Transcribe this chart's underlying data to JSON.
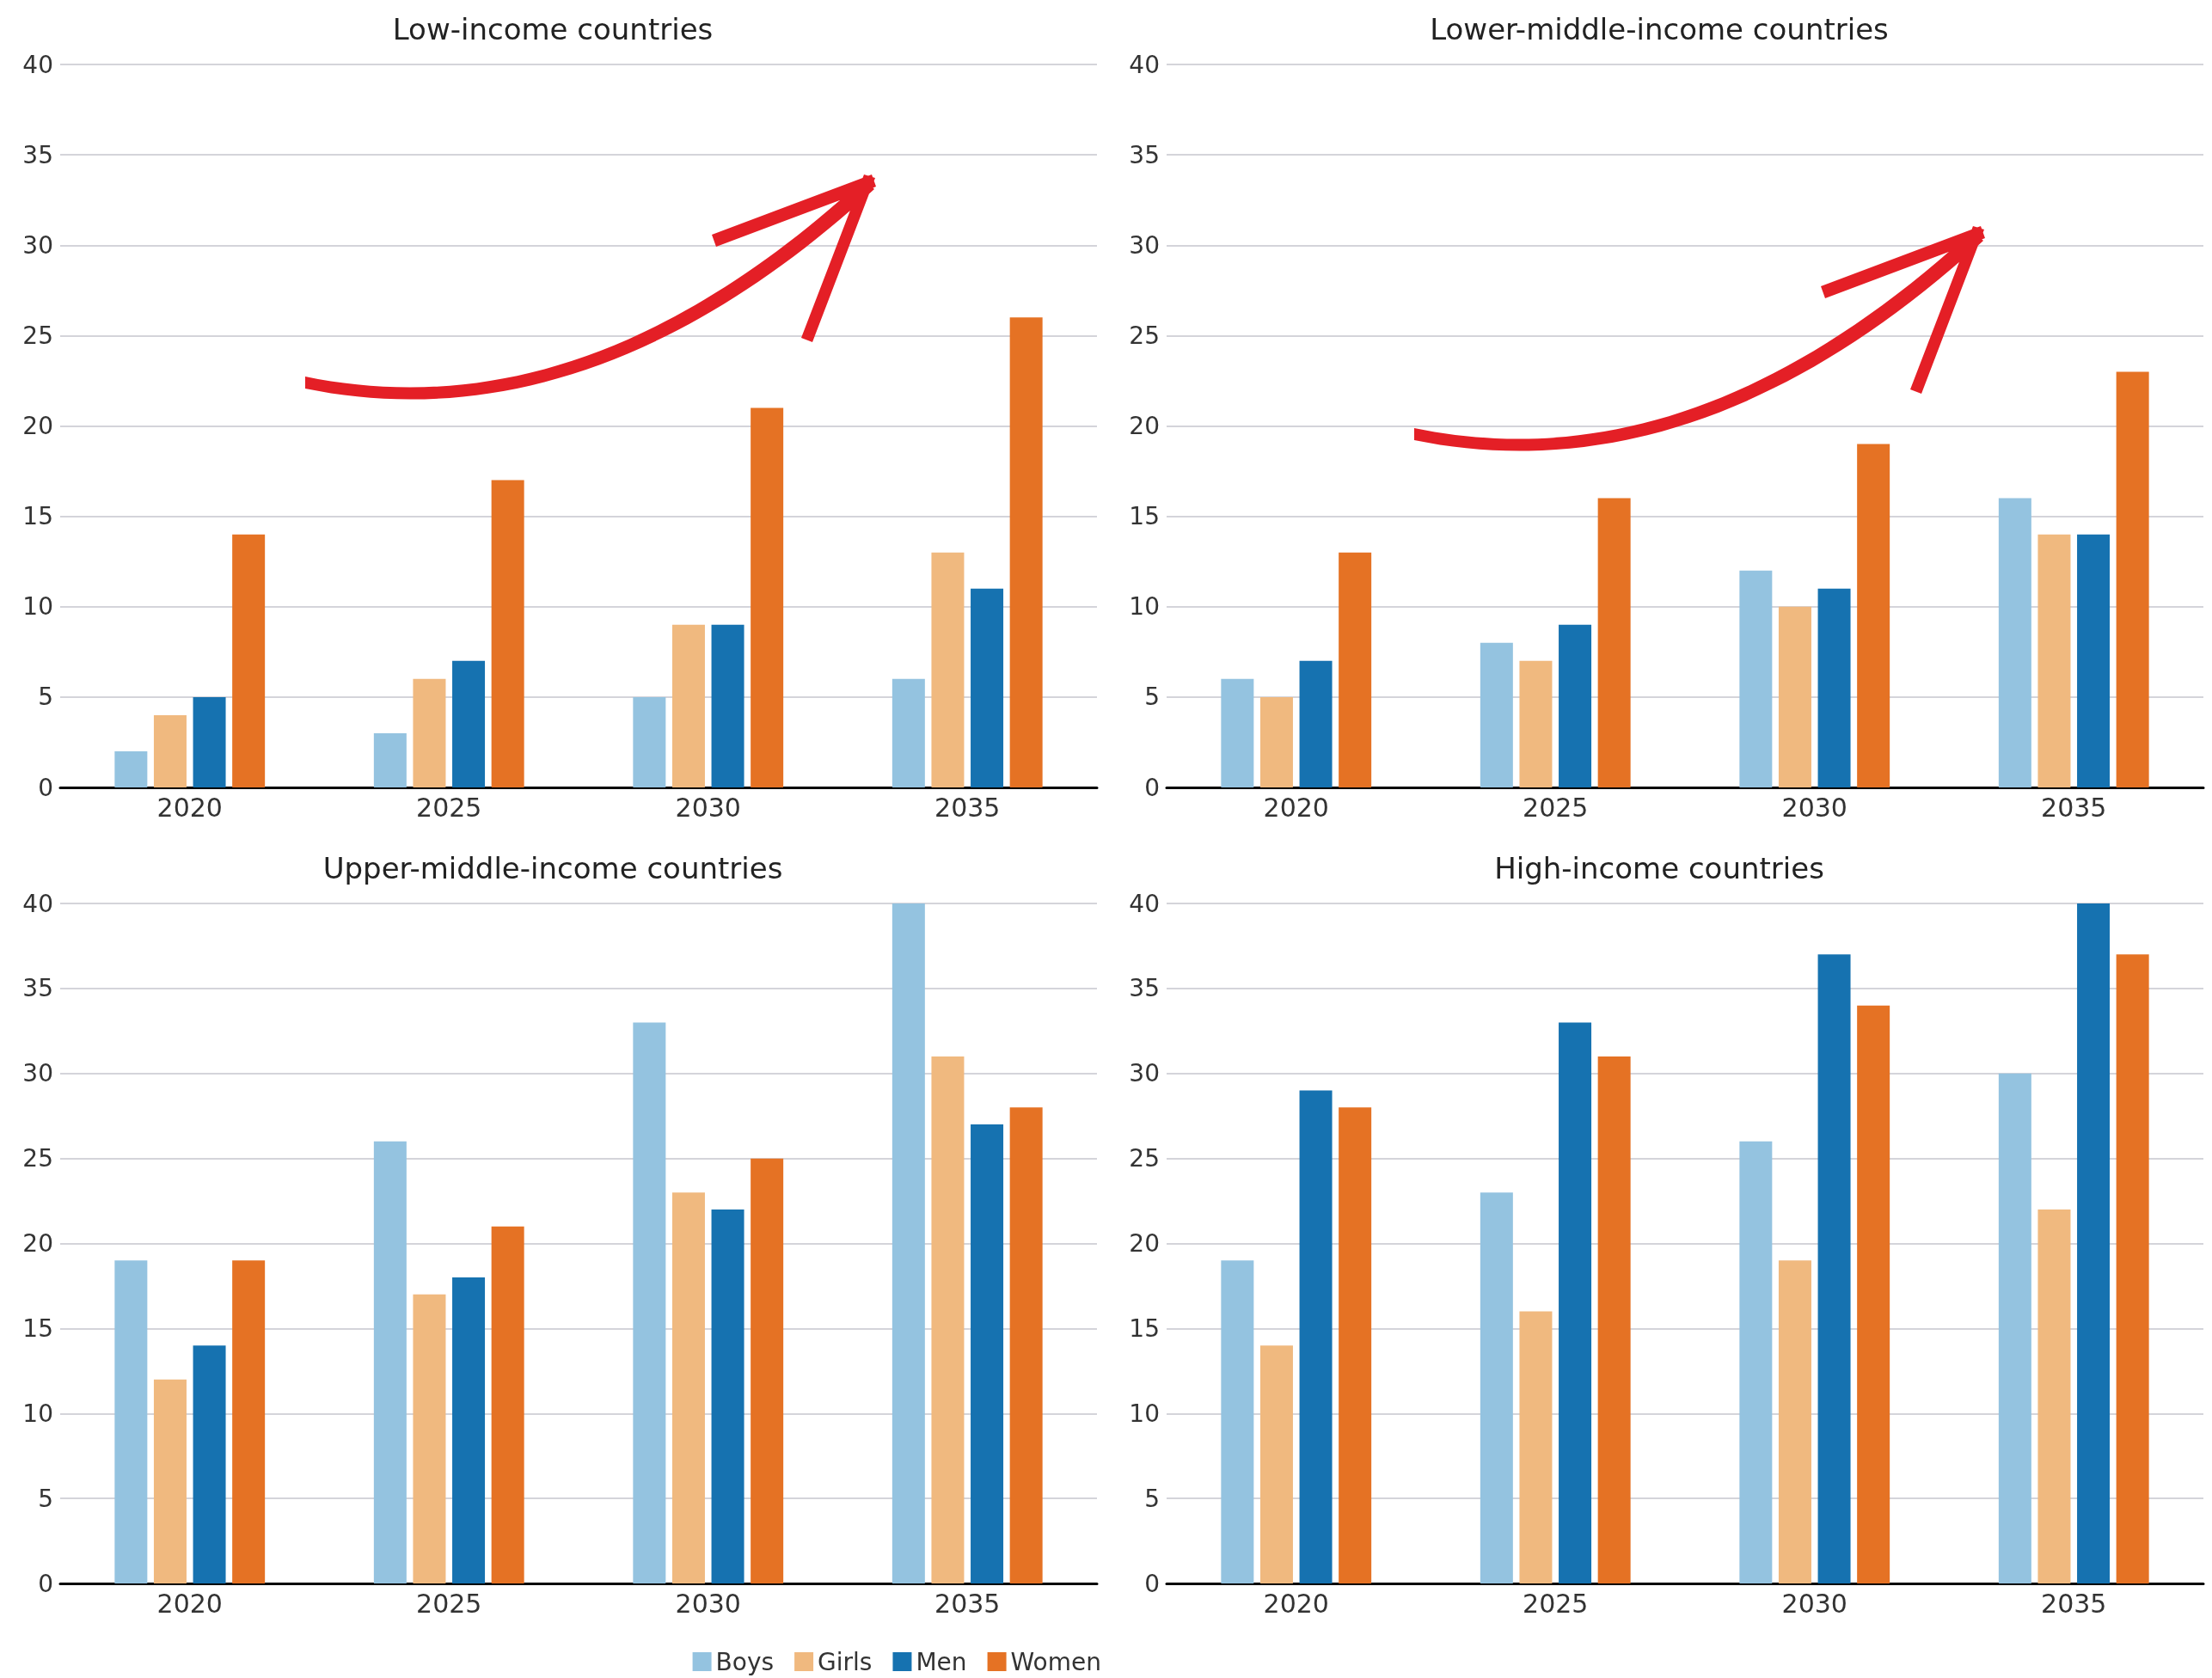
{
  "chart_data": [
    {
      "type": "bar",
      "title": "Low-income countries",
      "categories": [
        "2020",
        "2025",
        "2030",
        "2035"
      ],
      "ylim": [
        0,
        40
      ],
      "yticks": [
        0,
        5,
        10,
        15,
        20,
        25,
        30,
        35,
        40
      ],
      "grid": "y",
      "series": [
        {
          "color": "#94c3e0",
          "values": [
            2,
            3,
            5,
            6
          ]
        },
        {
          "color": "#f0b97f",
          "values": [
            4,
            6,
            9,
            13
          ]
        },
        {
          "color": "#1672b0",
          "values": [
            5,
            7,
            9,
            11
          ]
        },
        {
          "color": "#e57224",
          "values": [
            14,
            17,
            21,
            26
          ]
        }
      ]
    },
    {
      "type": "bar",
      "title": "Lower-middle-income countries",
      "categories": [
        "2020",
        "2025",
        "2030",
        "2035"
      ],
      "ylim": [
        0,
        40
      ],
      "yticks": [
        0,
        5,
        10,
        15,
        20,
        25,
        30,
        35,
        40
      ],
      "grid": "y",
      "series": [
        {
          "color": "#94c3e0",
          "values": [
            6,
            8,
            12,
            16
          ]
        },
        {
          "color": "#f0b97f",
          "values": [
            5,
            7,
            10,
            14
          ]
        },
        {
          "color": "#1672b0",
          "values": [
            7,
            9,
            11,
            14
          ]
        },
        {
          "color": "#e57224",
          "values": [
            13,
            16,
            19,
            23
          ]
        }
      ]
    },
    {
      "type": "bar",
      "title": "Upper-middle-income countries",
      "categories": [
        "2020",
        "2025",
        "2030",
        "2035"
      ],
      "ylim": [
        0,
        40
      ],
      "yticks": [
        0,
        5,
        10,
        15,
        20,
        25,
        30,
        35,
        40
      ],
      "grid": "y",
      "legend": "bottom right",
      "series": [
        {
          "name": "Boys",
          "color": "#94c3e0",
          "values": [
            19,
            26,
            33,
            40
          ]
        },
        {
          "name": "Girls",
          "color": "#f0b97f",
          "values": [
            12,
            17,
            23,
            31
          ]
        },
        {
          "name": "Men",
          "color": "#1672b0",
          "values": [
            14,
            18,
            22,
            27
          ]
        },
        {
          "name": "Women",
          "color": "#e57224",
          "values": [
            19,
            21,
            25,
            28
          ]
        }
      ]
    },
    {
      "type": "bar",
      "title": "High-income countries",
      "categories": [
        "2020",
        "2025",
        "2030",
        "2035"
      ],
      "ylim": [
        0,
        40
      ],
      "yticks": [
        0,
        5,
        10,
        15,
        20,
        25,
        30,
        35,
        40
      ],
      "grid": "y",
      "series": [
        {
          "color": "#94c3e0",
          "values": [
            19,
            23,
            26,
            30
          ]
        },
        {
          "color": "#f0b97f",
          "values": [
            14,
            16,
            19,
            22
          ]
        },
        {
          "color": "#1672b0",
          "values": [
            29,
            33,
            37,
            40
          ]
        },
        {
          "color": "#e57224",
          "values": [
            28,
            31,
            34,
            37
          ]
        }
      ]
    }
  ]
}
